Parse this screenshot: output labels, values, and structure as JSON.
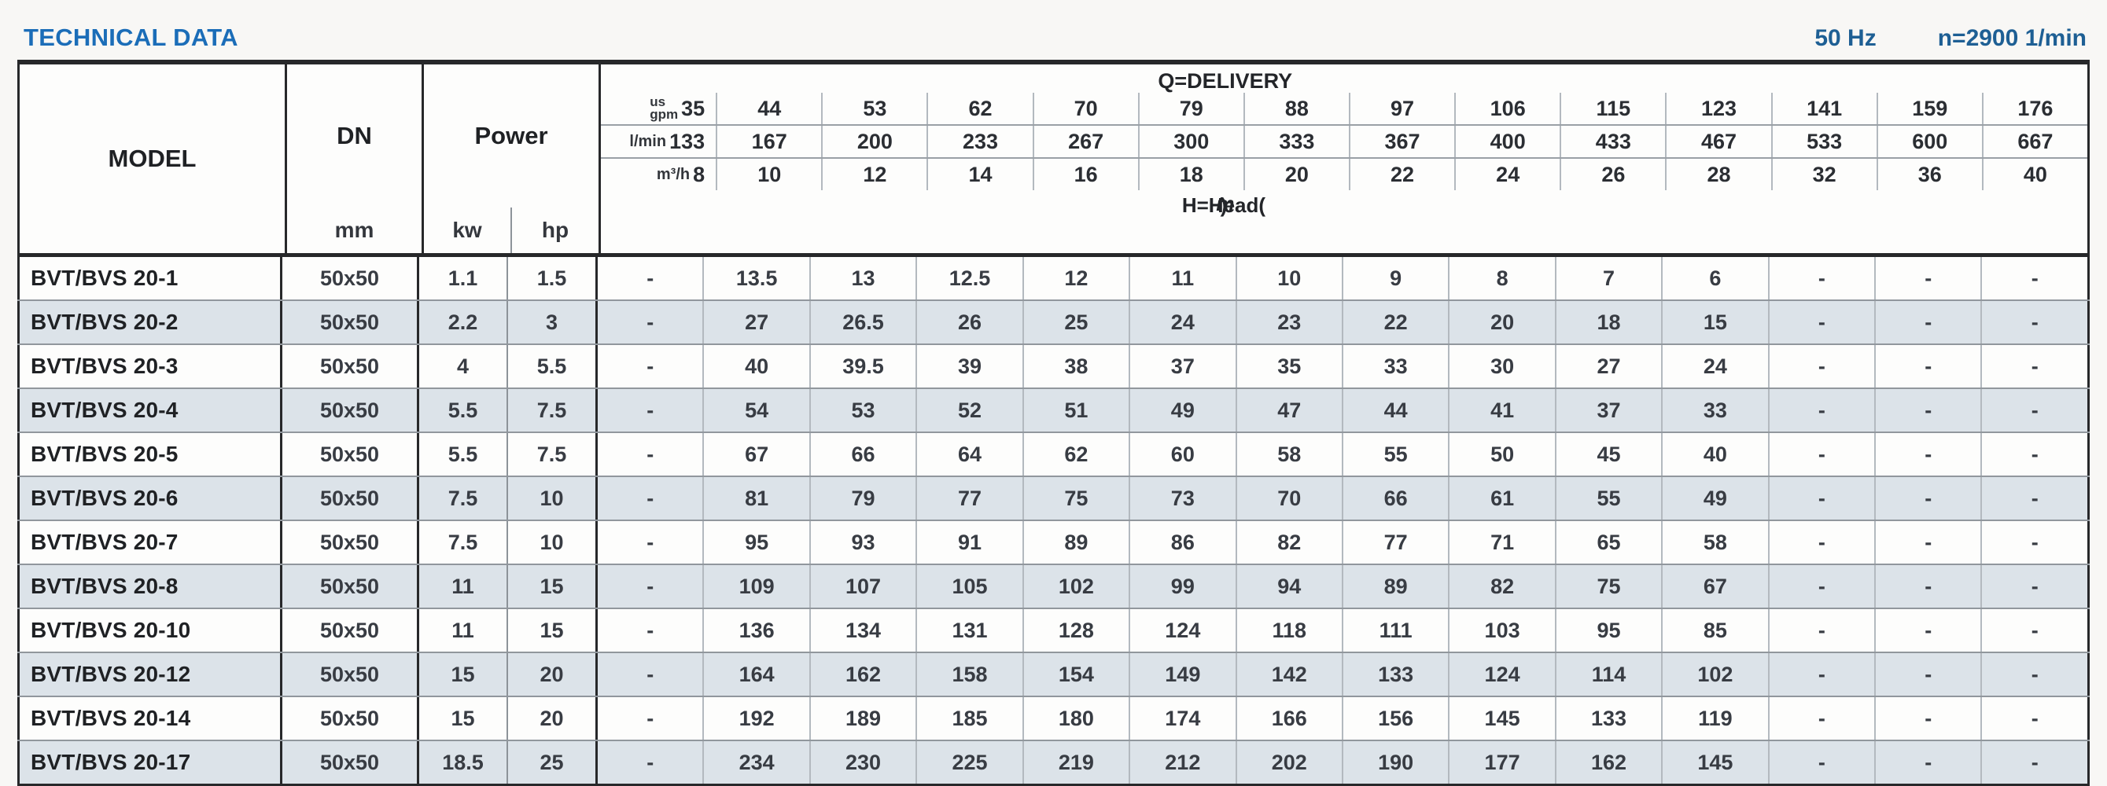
{
  "header": {
    "title": "TECHNICAL DATA",
    "frequency": "50 Hz",
    "speed": "n=2900 1/min"
  },
  "table": {
    "model_header": "MODEL",
    "dn_header": "DN",
    "dn_unit": "mm",
    "power_header": "Power",
    "power_units": [
      "kw",
      "hp"
    ],
    "delivery_header": "Q=DELIVERY",
    "head_label_pre": "H=Head(",
    "head_label_m": "m",
    "head_label_post": ")",
    "units": {
      "gpm_label_top": "us",
      "gpm_label_bottom": "gpm",
      "lmin_label": "l/min",
      "m3h_label": "m³/h"
    },
    "delivery": {
      "us_gpm": [
        "35",
        "44",
        "53",
        "62",
        "70",
        "79",
        "88",
        "97",
        "106",
        "115",
        "123",
        "141",
        "159",
        "176"
      ],
      "l_min": [
        "133",
        "167",
        "200",
        "233",
        "267",
        "300",
        "333",
        "367",
        "400",
        "433",
        "467",
        "533",
        "600",
        "667"
      ],
      "m3_h": [
        "8",
        "10",
        "12",
        "14",
        "16",
        "18",
        "20",
        "22",
        "24",
        "26",
        "28",
        "32",
        "36",
        "40"
      ]
    },
    "rows": [
      {
        "model": "BVT/BVS 20-1",
        "dn": "50x50",
        "kw": "1.1",
        "hp": "1.5",
        "head": [
          "-",
          "13.5",
          "13",
          "12.5",
          "12",
          "11",
          "10",
          "9",
          "8",
          "7",
          "6",
          "-",
          "-",
          "-"
        ]
      },
      {
        "model": "BVT/BVS 20-2",
        "dn": "50x50",
        "kw": "2.2",
        "hp": "3",
        "head": [
          "-",
          "27",
          "26.5",
          "26",
          "25",
          "24",
          "23",
          "22",
          "20",
          "18",
          "15",
          "-",
          "-",
          "-"
        ]
      },
      {
        "model": "BVT/BVS 20-3",
        "dn": "50x50",
        "kw": "4",
        "hp": "5.5",
        "head": [
          "-",
          "40",
          "39.5",
          "39",
          "38",
          "37",
          "35",
          "33",
          "30",
          "27",
          "24",
          "-",
          "-",
          "-"
        ]
      },
      {
        "model": "BVT/BVS 20-4",
        "dn": "50x50",
        "kw": "5.5",
        "hp": "7.5",
        "head": [
          "-",
          "54",
          "53",
          "52",
          "51",
          "49",
          "47",
          "44",
          "41",
          "37",
          "33",
          "-",
          "-",
          "-"
        ]
      },
      {
        "model": "BVT/BVS 20-5",
        "dn": "50x50",
        "kw": "5.5",
        "hp": "7.5",
        "head": [
          "-",
          "67",
          "66",
          "64",
          "62",
          "60",
          "58",
          "55",
          "50",
          "45",
          "40",
          "-",
          "-",
          "-"
        ]
      },
      {
        "model": "BVT/BVS 20-6",
        "dn": "50x50",
        "kw": "7.5",
        "hp": "10",
        "head": [
          "-",
          "81",
          "79",
          "77",
          "75",
          "73",
          "70",
          "66",
          "61",
          "55",
          "49",
          "-",
          "-",
          "-"
        ]
      },
      {
        "model": "BVT/BVS 20-7",
        "dn": "50x50",
        "kw": "7.5",
        "hp": "10",
        "head": [
          "-",
          "95",
          "93",
          "91",
          "89",
          "86",
          "82",
          "77",
          "71",
          "65",
          "58",
          "-",
          "-",
          "-"
        ]
      },
      {
        "model": "BVT/BVS 20-8",
        "dn": "50x50",
        "kw": "11",
        "hp": "15",
        "head": [
          "-",
          "109",
          "107",
          "105",
          "102",
          "99",
          "94",
          "89",
          "82",
          "75",
          "67",
          "-",
          "-",
          "-"
        ]
      },
      {
        "model": "BVT/BVS 20-10",
        "dn": "50x50",
        "kw": "11",
        "hp": "15",
        "head": [
          "-",
          "136",
          "134",
          "131",
          "128",
          "124",
          "118",
          "111",
          "103",
          "95",
          "85",
          "-",
          "-",
          "-"
        ]
      },
      {
        "model": "BVT/BVS 20-12",
        "dn": "50x50",
        "kw": "15",
        "hp": "20",
        "head": [
          "-",
          "164",
          "162",
          "158",
          "154",
          "149",
          "142",
          "133",
          "124",
          "114",
          "102",
          "-",
          "-",
          "-"
        ]
      },
      {
        "model": "BVT/BVS 20-14",
        "dn": "50x50",
        "kw": "15",
        "hp": "20",
        "head": [
          "-",
          "192",
          "189",
          "185",
          "180",
          "174",
          "166",
          "156",
          "145",
          "133",
          "119",
          "-",
          "-",
          "-"
        ]
      },
      {
        "model": "BVT/BVS 20-17",
        "dn": "50x50",
        "kw": "18.5",
        "hp": "25",
        "head": [
          "-",
          "234",
          "230",
          "225",
          "219",
          "212",
          "202",
          "190",
          "177",
          "162",
          "145",
          "-",
          "-",
          "-"
        ]
      }
    ],
    "colors": {
      "title_blue": "#1b6db8",
      "header_right_blue": "#1e5f94",
      "alt_row": "#dce3e9",
      "thick_border": "#27282a",
      "thin_line": "#91979d"
    }
  }
}
